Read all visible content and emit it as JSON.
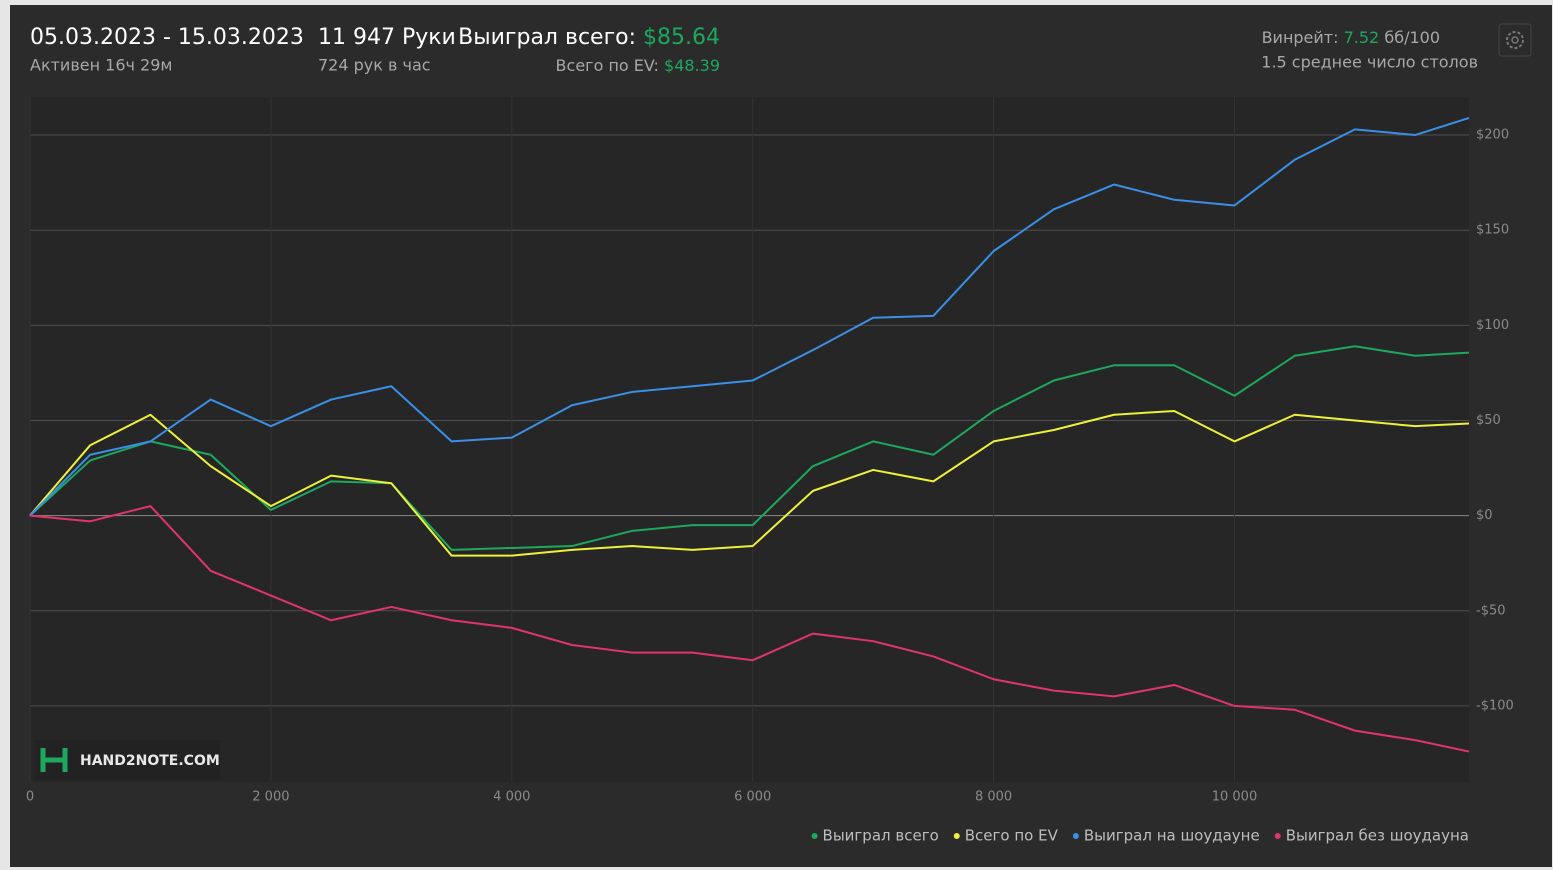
{
  "header": {
    "date_range": "05.03.2023 - 15.03.2023",
    "active": "Активен 16ч 29м",
    "hands": "11 947 Руки",
    "hands_per_hour": "724 рук в час",
    "won_label": "Выиграл всего:",
    "won_value": "$85.64",
    "ev_label": "Всего по EV:",
    "ev_value": "$48.39",
    "winrate_label": "Винрейт:",
    "winrate_value": "7.52",
    "winrate_unit": "бб/100",
    "tables": "1.5 среднее число столов",
    "logo": "HAND2NOTE.COM"
  },
  "chart_data": {
    "type": "line",
    "x": [
      0,
      500,
      1000,
      1500,
      2000,
      2500,
      3000,
      3500,
      4000,
      4500,
      5000,
      5500,
      6000,
      6500,
      7000,
      7500,
      8000,
      8500,
      9000,
      9500,
      10000,
      10500,
      11000,
      11500,
      11947
    ],
    "series": [
      {
        "name": "Выиграл всего",
        "color": "#1ea85e",
        "values": [
          0,
          29,
          39,
          32,
          3,
          18,
          17,
          -18,
          -17,
          -16,
          -8,
          -5,
          -5,
          26,
          39,
          32,
          55,
          71,
          79,
          79,
          63,
          84,
          89,
          84,
          85.64
        ]
      },
      {
        "name": "Всего по EV",
        "color": "#eef03a",
        "values": [
          0,
          37,
          53,
          26,
          5,
          21,
          17,
          -21,
          -21,
          -18,
          -16,
          -18,
          -16,
          13,
          24,
          18,
          39,
          45,
          53,
          55,
          39,
          53,
          50,
          47,
          48.39
        ]
      },
      {
        "name": "Выиграл на шоудауне",
        "color": "#3b8fe6",
        "values": [
          0,
          32,
          39,
          61,
          47,
          61,
          68,
          39,
          41,
          58,
          65,
          68,
          71,
          87,
          104,
          105,
          139,
          161,
          174,
          166,
          163,
          187,
          203,
          200,
          209
        ]
      },
      {
        "name": "Выиграл без шоудауна",
        "color": "#e0356b",
        "values": [
          0,
          -3,
          5,
          -29,
          -42,
          -55,
          -48,
          -55,
          -59,
          -68,
          -72,
          -72,
          -76,
          -62,
          -66,
          -74,
          -86,
          -92,
          -95,
          -89,
          -100,
          -102,
          -113,
          -118,
          -124
        ]
      }
    ],
    "xlim": [
      0,
      11947
    ],
    "xticks": [
      0,
      {
        "value": 2000,
        "label": "2 000"
      },
      {
        "value": 4000,
        "label": "4 000"
      },
      {
        "value": 6000,
        "label": "6 000"
      },
      {
        "value": 8000,
        "label": "8 000"
      },
      {
        "value": 10000,
        "label": "10 000"
      }
    ],
    "ylim": [
      -140,
      220
    ],
    "yticks": [
      {
        "value": -100,
        "label": "-$100"
      },
      {
        "value": -50,
        "label": "-$50"
      },
      {
        "value": 0,
        "label": "$0"
      },
      {
        "value": 50,
        "label": "$50"
      },
      {
        "value": 100,
        "label": "$100"
      },
      {
        "value": 150,
        "label": "$150"
      },
      {
        "value": 200,
        "label": "$200"
      }
    ],
    "grid": true
  }
}
